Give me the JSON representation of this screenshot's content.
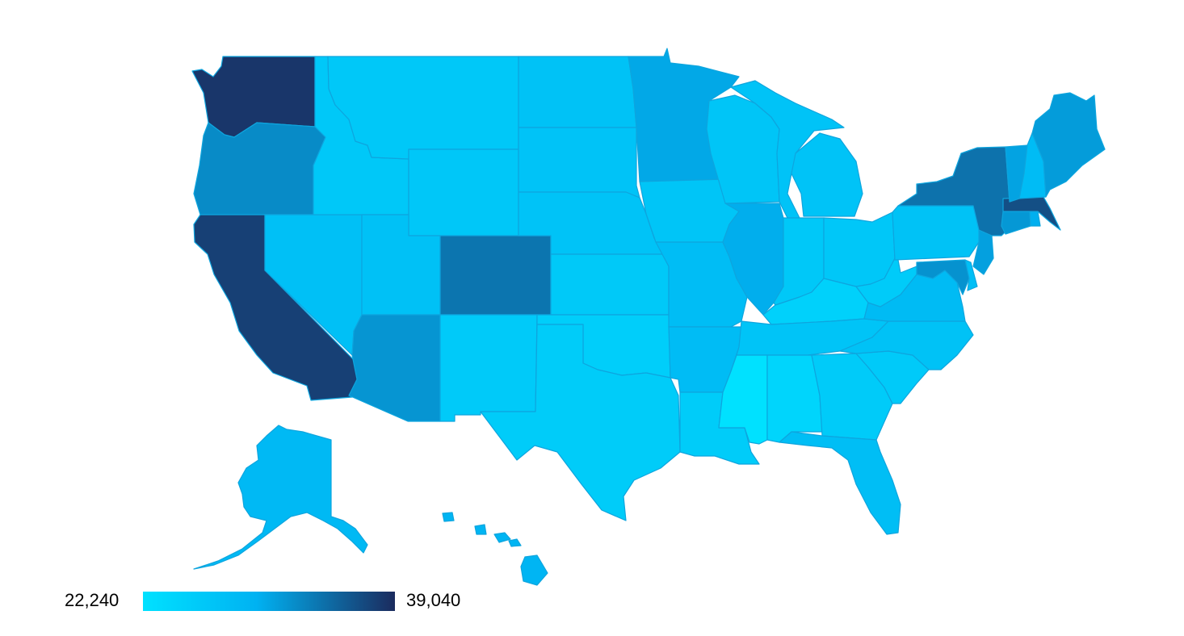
{
  "colors": {
    "scale_low": "#00e1ff",
    "scale_mid": "#00b2f2",
    "scale_high": "#1b2b5e",
    "border": "#0ea5de"
  },
  "legend": {
    "min": 22240,
    "max": 39040,
    "min_label": "22,240",
    "max_label": "39,040"
  },
  "regions": {
    "washington": 38300,
    "oregon": 32500,
    "california": 37600,
    "nevada": 27500,
    "idaho": 26300,
    "montana": 26200,
    "wyoming": 26400,
    "utah": 27400,
    "colorado": 34000,
    "arizona": 31800,
    "new-mexico": 26000,
    "texas": 25600,
    "oklahoma": 25300,
    "kansas": 26100,
    "nebraska": 27100,
    "south-dakota": 27100,
    "north-dakota": 27200,
    "minnesota": 30500,
    "iowa": 26800,
    "missouri": 28100,
    "arkansas": 28200,
    "louisiana": 25600,
    "wisconsin": 26700,
    "illinois": 30100,
    "michigan": 27000,
    "indiana": 26200,
    "ohio": 26400,
    "kentucky": 24800,
    "tennessee": 26900,
    "mississippi": 22240,
    "alabama": 24100,
    "georgia": 25700,
    "florida": 27800,
    "south-carolina": 25900,
    "north-carolina": 27300,
    "virginia": 28400,
    "west-virginia": 25800,
    "pennsylvania": 27200,
    "new-york": 34200,
    "vermont": 30800,
    "new-hampshire": 28200,
    "maine": 31300,
    "massachusetts": 36600,
    "connecticut": 31600,
    "rhode-island": 30000,
    "new-jersey": 31000,
    "delaware": 27700,
    "maryland": 32000,
    "alaska": 28700,
    "hawaii": 29300
  }
}
